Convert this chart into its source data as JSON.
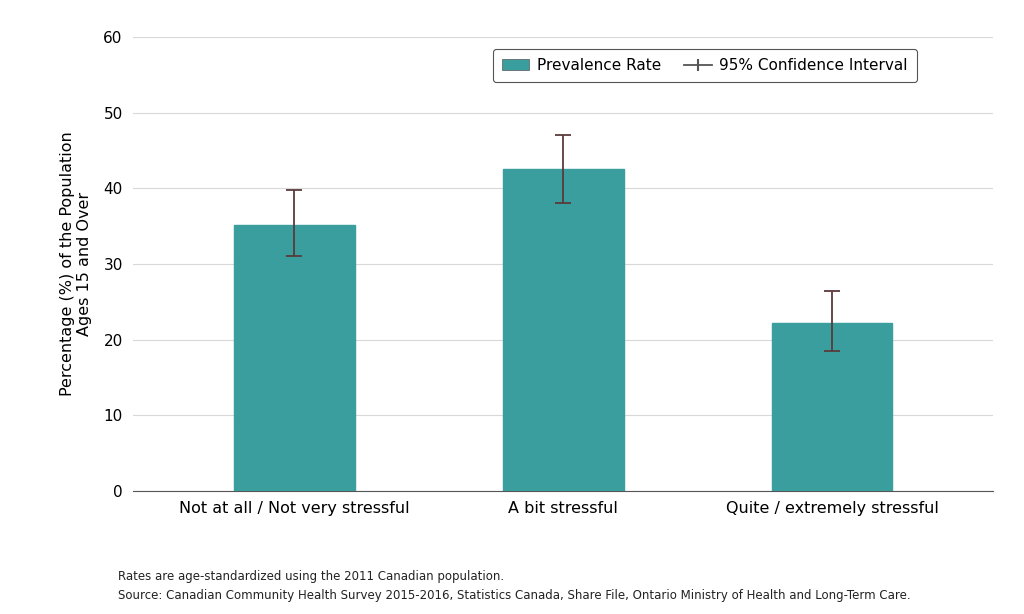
{
  "categories": [
    "Not at all / Not very stressful",
    "A bit stressful",
    "Quite / extremely stressful"
  ],
  "values": [
    35.2,
    42.5,
    22.2
  ],
  "ci_lower": [
    31.0,
    38.0,
    18.5
  ],
  "ci_upper": [
    39.8,
    47.0,
    26.5
  ],
  "bar_color": "#3a9e9e",
  "ci_color": "#5a3a3a",
  "ylabel": "Percentage (%) of the Population\nAges 15 and Over",
  "ylim": [
    0,
    60
  ],
  "yticks": [
    0,
    10,
    20,
    30,
    40,
    50,
    60
  ],
  "legend_label_bar": "Prevalence Rate",
  "legend_label_ci": "95% Confidence Interval",
  "footnote1": "Rates are age-standardized using the 2011 Canadian population.",
  "footnote2": "Source: Canadian Community Health Survey 2015-2016, Statistics Canada, Share File, Ontario Ministry of Health and Long-Term Care.",
  "background_color": "#ffffff",
  "grid_color": "#d8d8d8",
  "bar_width": 0.45,
  "x_positions": [
    0,
    1,
    2
  ]
}
